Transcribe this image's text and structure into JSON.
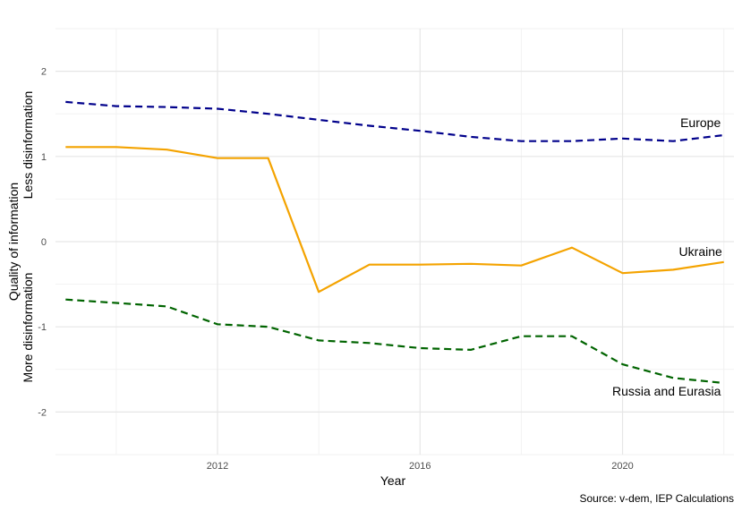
{
  "chart_data": {
    "type": "line",
    "xlabel": "Year",
    "ylabel_lines": [
      "Quality of information",
      "Less disinformation",
      "More disinformation"
    ],
    "caption": "Source: v-dem, IEP Calculations",
    "xlim": [
      2008.8,
      2022.2
    ],
    "ylim": [
      -2.5,
      2.5
    ],
    "x_ticks": [
      2012,
      2016,
      2020
    ],
    "x_minor_ticks": [
      2010,
      2014,
      2018,
      2022
    ],
    "y_ticks": [
      -2,
      -1,
      0,
      1,
      2
    ],
    "y_minor_ticks": [
      -2.5,
      -1.5,
      -0.5,
      0.5,
      1.5,
      2.5
    ],
    "grid": true,
    "legend": "none",
    "x": [
      2009,
      2010,
      2011,
      2012,
      2013,
      2014,
      2015,
      2016,
      2017,
      2018,
      2019,
      2020,
      2021,
      2022
    ],
    "series": [
      {
        "name": "Europe",
        "color": "#00008B",
        "dash": "dashed",
        "values": [
          1.64,
          1.59,
          1.58,
          1.56,
          1.5,
          1.43,
          1.36,
          1.3,
          1.23,
          1.18,
          1.18,
          1.21,
          1.18,
          1.25
        ]
      },
      {
        "name": "Ukraine",
        "color": "#F4A300",
        "dash": "solid",
        "values": [
          1.11,
          1.11,
          1.08,
          0.98,
          0.98,
          -0.59,
          -0.27,
          -0.27,
          -0.26,
          -0.28,
          -0.07,
          -0.37,
          -0.33,
          -0.24
        ]
      },
      {
        "name": "Russia and Eurasia",
        "color": "#006400",
        "dash": "dashed",
        "values": [
          -0.68,
          -0.72,
          -0.76,
          -0.97,
          -1.0,
          -1.16,
          -1.19,
          -1.25,
          -1.27,
          -1.11,
          -1.11,
          -1.44,
          -1.6,
          -1.66
        ]
      }
    ]
  }
}
